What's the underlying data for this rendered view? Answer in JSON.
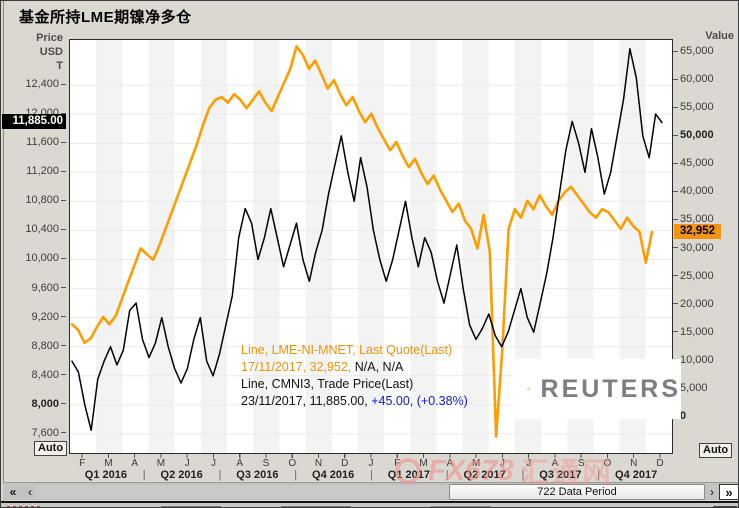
{
  "window": {
    "title": "基金所持LME期镍净多仓"
  },
  "left_axis": {
    "title_lines": [
      "Price",
      "USD",
      "T"
    ],
    "ticks": [
      12400,
      12000,
      11600,
      11200,
      10800,
      10400,
      10000,
      9600,
      9200,
      8800,
      8400,
      8000,
      7600
    ],
    "bold_ticks": [
      8000
    ],
    "last_price_label": "11,885.00",
    "auto_label": "Auto"
  },
  "right_axis": {
    "title": "Value",
    "ticks": [
      65000,
      60000,
      55000,
      50000,
      45000,
      40000,
      35000,
      30000,
      25000,
      20000,
      15000,
      10000,
      5000,
      0
    ],
    "bold_ticks": [
      50000,
      0
    ],
    "last_value_label": "32,952",
    "auto_label": "Auto"
  },
  "x_axis": {
    "months": [
      "F",
      "M",
      "A",
      "M",
      "J",
      "J",
      "A",
      "S",
      "O",
      "N",
      "D",
      "J",
      "F",
      "M",
      "A",
      "M",
      "J",
      "J",
      "A",
      "S",
      "O",
      "N",
      "D"
    ],
    "quarters": [
      "Q1 2016",
      "Q2 2016",
      "Q3 2016",
      "Q4 2016",
      "Q1 2017",
      "Q2 2017",
      "Q3 2017",
      "Q4 2017"
    ],
    "separator": "|"
  },
  "legend": {
    "line1": "Line, LME-NI-MNET, Last Quote(Last)",
    "line2_orange": "17/11/2017, 32,952,",
    "line2_black": " N/A, N/A",
    "line3": "Line, CMNI3, Trade Price(Last)",
    "line4_black": "23/11/2017, 11,885.00, ",
    "line4_blue": "+45.00, (+0.38%)"
  },
  "logo": {
    "text": "REUTERS"
  },
  "watermark": {
    "text_fx": "FX678",
    "text_cn": "汇通网"
  },
  "scrollbar": {
    "left_double": "«",
    "left_single": "‹",
    "thumb_label": "722 Data Period",
    "right_single": "›",
    "right_double": "»"
  },
  "colors": {
    "orange_line": "#FF9C00",
    "black_line": "#000000",
    "blue_text": "#1515cc",
    "orange_box": "#F29413",
    "band": "#f3f3f3",
    "gridline": "#eaeaea"
  },
  "chart_data": {
    "type": "line",
    "title": "基金所持LME期镍净多仓",
    "x_range": "Feb 2016 – Dec 2017 (722 Data Period shown, values approximated weekly)",
    "left_axis_label": "Price USD T",
    "right_axis_label": "Value",
    "left_axis_range": [
      7310,
      13020
    ],
    "right_axis_range": [
      -6780,
      67150
    ],
    "grid": "on",
    "series": [
      {
        "name": "LME-NI-MNET, Last Quote(Last)",
        "axis": "right",
        "color": "#FF9C00",
        "last_date": "17/11/2017",
        "last_value": 32952,
        "values": [
          16500,
          15500,
          13200,
          14000,
          16000,
          17800,
          16500,
          18000,
          21000,
          24000,
          27000,
          30000,
          29000,
          28000,
          30500,
          33500,
          36500,
          39500,
          42500,
          45500,
          48500,
          52000,
          55000,
          56500,
          57000,
          56000,
          57500,
          56500,
          55000,
          56500,
          58000,
          56000,
          54500,
          57000,
          59500,
          62000,
          66000,
          64500,
          62000,
          63500,
          61000,
          58500,
          60000,
          57500,
          55500,
          57000,
          54500,
          52500,
          54000,
          51500,
          49500,
          47500,
          49000,
          46500,
          44500,
          46000,
          43500,
          41500,
          43000,
          40500,
          38500,
          36500,
          38000,
          35000,
          33500,
          30000,
          36000,
          29500,
          -3500,
          12000,
          33500,
          37000,
          35500,
          38500,
          37000,
          39500,
          37500,
          36000,
          38500,
          40000,
          41000,
          39500,
          38000,
          36500,
          35500,
          37000,
          36500,
          35000,
          33500,
          35500,
          34000,
          33000,
          27500,
          32952
        ]
      },
      {
        "name": "CMNI3, Trade Price(Last)",
        "axis": "left",
        "color": "#000000",
        "last_date": "23/11/2017",
        "last_value": 11885.0,
        "change": "+45.00",
        "change_pct": "+0.38%",
        "values": [
          8600,
          8450,
          8000,
          7650,
          8350,
          8600,
          8800,
          8550,
          8750,
          9300,
          9400,
          8900,
          8650,
          8850,
          9200,
          8800,
          8500,
          8300,
          8500,
          8900,
          9200,
          8600,
          8400,
          8700,
          9100,
          9500,
          10300,
          10700,
          10500,
          10000,
          10300,
          10700,
          10300,
          9900,
          10200,
          10500,
          10000,
          9700,
          10100,
          10400,
          10900,
          11300,
          11700,
          11200,
          10800,
          11400,
          11000,
          10400,
          10000,
          9700,
          10000,
          10400,
          10800,
          10300,
          9900,
          10300,
          10100,
          9700,
          9400,
          9800,
          10200,
          9600,
          9100,
          8900,
          9050,
          9250,
          8950,
          8800,
          9000,
          9300,
          9600,
          9200,
          9000,
          9400,
          9800,
          10300,
          10900,
          11500,
          11900,
          11600,
          11200,
          11800,
          11400,
          10900,
          11200,
          11700,
          12200,
          12900,
          12500,
          11700,
          11400,
          12000,
          11885
        ]
      }
    ]
  }
}
